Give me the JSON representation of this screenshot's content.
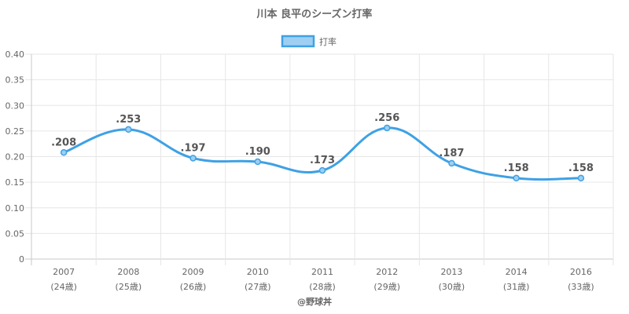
{
  "chart_data": {
    "type": "line",
    "title": "川本 良平のシーズン打率",
    "categories": [
      "2007",
      "2008",
      "2009",
      "2010",
      "2011",
      "2012",
      "2013",
      "2014",
      "2016"
    ],
    "category_sublabels": [
      "(24歳)",
      "(25歳)",
      "(26歳)",
      "(27歳)",
      "(28歳)",
      "(29歳)",
      "(30歳)",
      "(31歳)",
      "(33歳)"
    ],
    "series": [
      {
        "name": "打率",
        "values": [
          0.208,
          0.253,
          0.197,
          0.19,
          0.173,
          0.256,
          0.187,
          0.158,
          0.158
        ],
        "data_labels": [
          ".208",
          ".253",
          ".197",
          ".190",
          ".173",
          ".256",
          ".187",
          ".158",
          ".158"
        ],
        "color": "#3ea1e4",
        "fill": "#9ecff3"
      }
    ],
    "ylim": [
      0,
      0.4
    ],
    "yticks": [
      0,
      0.05,
      0.1,
      0.15,
      0.2,
      0.25,
      0.3,
      0.35,
      0.4
    ],
    "ytick_labels": [
      "0",
      "0.05",
      "0.10",
      "0.15",
      "0.20",
      "0.25",
      "0.30",
      "0.35",
      "0.40"
    ],
    "xlabel": "",
    "ylabel": "",
    "grid": true,
    "legend": "top-center"
  },
  "footer": "@野球丼",
  "colors": {
    "grid": "#e6e6e6",
    "axis": "#c8c8c8",
    "text": "#666666"
  }
}
